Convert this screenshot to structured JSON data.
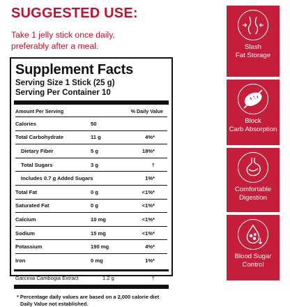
{
  "suggested": {
    "title": "SUGGESTED USE:",
    "line1": "Take 1 jelly stick once daily,",
    "line2": "preferably after a meal."
  },
  "facts": {
    "title": "Supplement Facts",
    "serving_size": "Serving Size 1 Stick (25 g)",
    "servings_per_container": "Serving Per Container 10",
    "amount_header": "Amount Per Serving",
    "dv_header": "% Daily Value",
    "rows": [
      {
        "name": "Calories",
        "amount": "50",
        "dv": ""
      },
      {
        "name": "Total Carbohydrate",
        "amount": "11 g",
        "dv": "4%*"
      },
      {
        "name": "Dietary Fiber",
        "amount": "5 g",
        "dv": "18%*"
      },
      {
        "name": "Total Sugars",
        "amount": "3 g",
        "dv": "†"
      },
      {
        "name": "Includes 0.7 g Added Sugars",
        "amount": "",
        "dv": "1%*"
      },
      {
        "name": "Total Fat",
        "amount": "0 g",
        "dv": "<1%*"
      },
      {
        "name": "Saturated Fat",
        "amount": "0 g",
        "dv": "<1%*"
      },
      {
        "name": "Calcium",
        "amount": "10 mg",
        "dv": "<1%*"
      },
      {
        "name": "Sodium",
        "amount": "15 mg",
        "dv": "<1%*"
      },
      {
        "name": "Potassium",
        "amount": "190 mg",
        "dv": "4%*"
      },
      {
        "name": "Iron",
        "amount": "0 mg",
        "dv": "1%*"
      },
      {
        "name": "Garcinia Cambogia Extract",
        "amount": "1.2 g",
        "dv": "†"
      }
    ],
    "footnote1": "* Percentage daily values are based on a 2,000 calorie diet",
    "footnote2": "Daily Value not established."
  },
  "benefits": [
    {
      "icon": "waist-icon",
      "line1": "Slash",
      "line2": "Fat Storage"
    },
    {
      "icon": "bread-icon",
      "line1": "Block",
      "line2": "Carb Absorption"
    },
    {
      "icon": "stomach-icon",
      "line1": "Comfortable",
      "line2": "Digestion"
    },
    {
      "icon": "blood-drop-icon",
      "line1": "Blood Sugar",
      "line2": "Control"
    }
  ],
  "colors": {
    "accent": "#c41e3a",
    "heading": "#c8102e"
  }
}
